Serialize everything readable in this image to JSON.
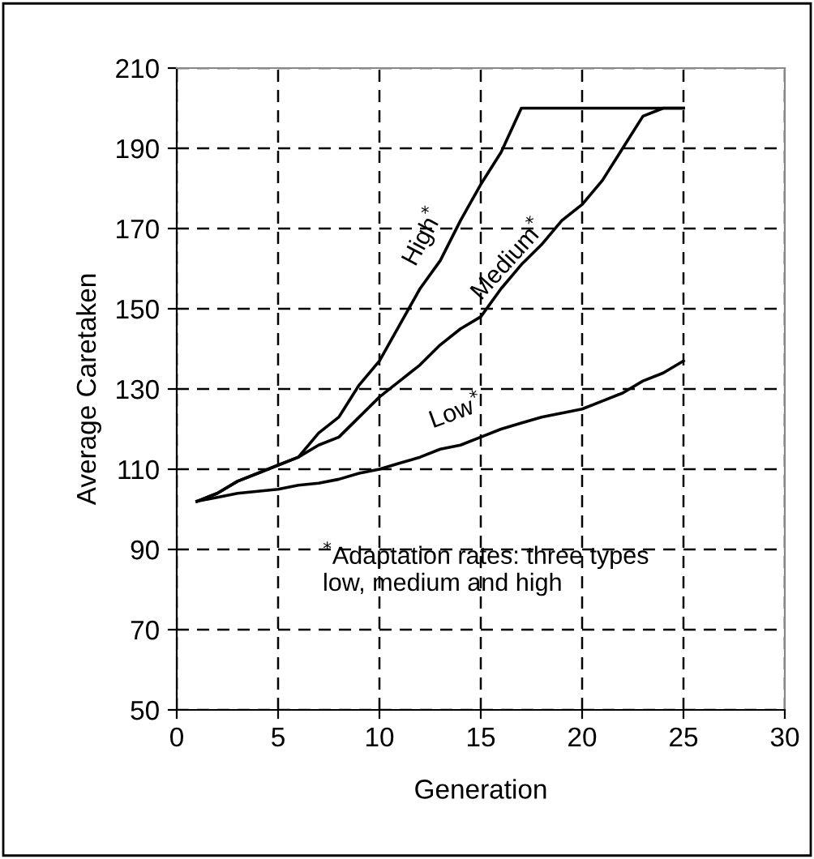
{
  "chart_data": {
    "type": "line",
    "xlabel": "Generation",
    "ylabel": "Average Caretaken",
    "x": [
      1,
      2,
      3,
      4,
      5,
      6,
      7,
      8,
      9,
      10,
      11,
      12,
      13,
      14,
      15,
      16,
      17,
      18,
      19,
      20,
      21,
      22,
      23,
      24,
      25
    ],
    "series": [
      {
        "name": "High$^{*}$",
        "color": "#000000",
        "values": [
          102,
          104,
          107,
          109,
          111,
          113,
          119,
          123,
          131,
          137,
          146,
          155,
          162,
          172,
          181,
          189,
          200,
          200,
          200,
          200,
          200,
          200,
          200,
          200,
          200
        ]
      },
      {
        "name": "Medium$^{*}$",
        "color": "#000000",
        "values": [
          102,
          104,
          107,
          109,
          111,
          113,
          116,
          118,
          123,
          128,
          132,
          136,
          141,
          145,
          148,
          155,
          161,
          166,
          172,
          176,
          182,
          190,
          198,
          200,
          200
        ]
      },
      {
        "name": "Low$^{*}$",
        "color": "#000000",
        "values": [
          102,
          103,
          104,
          104.5,
          105,
          106,
          106.5,
          107.5,
          109,
          110,
          111.5,
          113,
          115,
          116,
          118,
          120,
          121.5,
          123,
          124,
          125,
          127,
          129,
          132,
          134,
          137
        ]
      }
    ],
    "annotations": [
      "$^{*}$Adaptation rates: three types\nlow, medium and high"
    ],
    "xlim": [
      0,
      30
    ],
    "xticks": [
      0,
      5,
      10,
      15,
      20,
      25,
      30
    ],
    "ylim": [
      50,
      210
    ],
    "yticks": [
      50,
      70,
      90,
      110,
      130,
      150,
      170,
      190,
      210
    ],
    "grid": true,
    "marker": "none",
    "line_style": "solid",
    "legend": false
  }
}
